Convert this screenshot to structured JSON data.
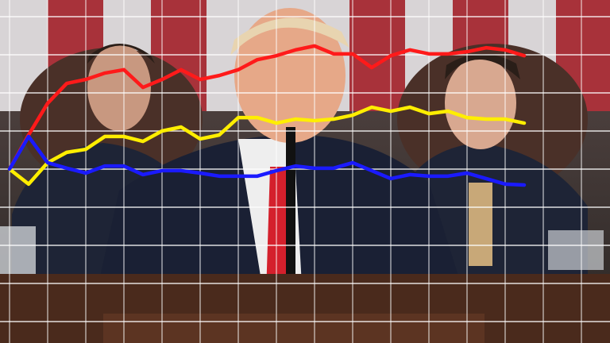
{
  "chart_data": {
    "type": "line",
    "x": [
      0,
      1,
      2,
      3,
      4,
      5,
      6,
      7,
      8,
      9,
      10,
      11,
      12,
      13,
      14,
      15,
      16,
      17,
      18,
      19,
      20,
      21,
      22,
      23,
      24,
      25,
      26,
      27
    ],
    "series": [
      {
        "color": "#ff1a1a",
        "values": [
          50,
          61.2,
          71.6,
          78.1,
          79.4,
          81.5,
          82.6,
          76.8,
          79.4,
          82.6,
          79.4,
          80.7,
          82.6,
          85.9,
          87.2,
          89.1,
          90.4,
          87.8,
          87.8,
          83.3,
          87.2,
          89.1,
          87.8,
          87.8,
          88.5,
          89.8,
          89.1,
          87.2
        ]
      },
      {
        "color": "#ffee00",
        "values": [
          50,
          45.1,
          52.1,
          55.5,
          56.5,
          60.7,
          60.7,
          59.1,
          62.5,
          63.8,
          59.9,
          61.2,
          66.9,
          66.9,
          65.1,
          66.4,
          65.9,
          66.4,
          67.7,
          70.3,
          69,
          70.3,
          68.2,
          69,
          66.9,
          66.4,
          66.4,
          65.1
        ]
      },
      {
        "color": "#1a1aff",
        "values": [
          50,
          60.7,
          52.1,
          50.3,
          48.7,
          51,
          51,
          48.2,
          49.5,
          49.5,
          48.7,
          47.7,
          47.7,
          47.7,
          49.5,
          51,
          50.3,
          50.3,
          52.1,
          49.5,
          46.9,
          48.2,
          47.7,
          47.7,
          48.7,
          46.9,
          45.1,
          44.8
        ]
      }
    ],
    "xlim": [
      0,
      31
    ],
    "xticks": [
      0,
      2,
      4,
      6,
      8,
      10,
      12,
      14,
      16,
      18,
      20,
      22,
      24,
      26,
      28,
      30
    ],
    "ylim": [
      0,
      100
    ],
    "yticks": [
      0,
      12.5,
      25,
      37.5,
      50,
      62.5,
      75,
      87.5,
      100
    ],
    "grid": true
  }
}
